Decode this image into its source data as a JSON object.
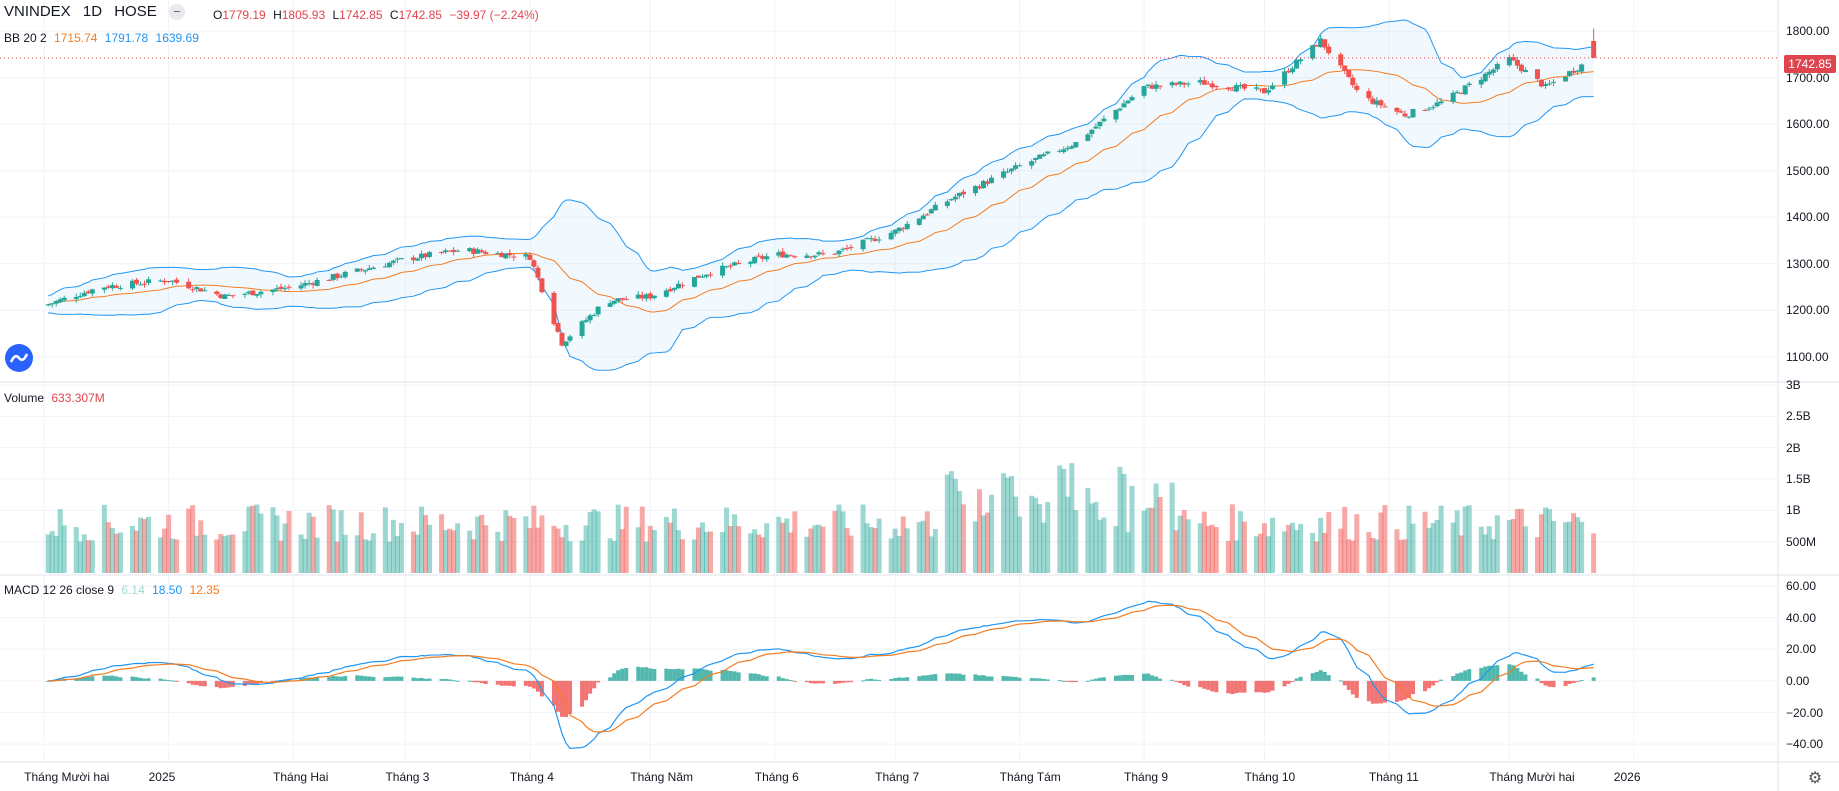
{
  "header": {
    "symbol": "VNINDEX",
    "interval": "1D",
    "exchange": "HOSE",
    "collapse_icon": "minus-icon",
    "open_label": "O",
    "open": "1779.19",
    "high_label": "H",
    "high": "1805.93",
    "low_label": "L",
    "low": "1742.85",
    "close_label": "C",
    "close": "1742.85",
    "change": "−39.97 (−2.24%)"
  },
  "bb_legend": {
    "name": "BB 20 2",
    "middle": "1715.74",
    "upper": "1791.78",
    "lower": "1639.69"
  },
  "volume_legend": {
    "name": "Volume",
    "value": "633.307M"
  },
  "macd_legend": {
    "name": "MACD 12 26 close 9",
    "hist": "6.14",
    "macd": "18.50",
    "signal": "12.35"
  },
  "last_price_tag": "1742.85",
  "price_axis": [
    "1800.00",
    "1700.00",
    "1600.00",
    "1500.00",
    "1400.00",
    "1300.00",
    "1200.00",
    "1100.00"
  ],
  "volume_axis": [
    "3B",
    "2.5B",
    "2B",
    "1.5B",
    "1B",
    "500M"
  ],
  "macd_axis": [
    "60.00",
    "40.00",
    "20.00",
    "0.00",
    "−20.00",
    "−40.00"
  ],
  "time_axis": [
    "Tháng Mười hai",
    "2025",
    "Tháng Hai",
    "Tháng 3",
    "Tháng 4",
    "Tháng Năm",
    "Tháng 6",
    "Tháng 7",
    "Tháng Tám",
    "Tháng 9",
    "Tháng 10",
    "Tháng 11",
    "Tháng Mười hai",
    "2026"
  ],
  "colors": {
    "up": "#26a69a",
    "down": "#ef5350",
    "bb_basis": "#f47c20",
    "bb_band": "#2196f3",
    "macd": "#2196f3",
    "signal": "#f47c20"
  },
  "chart_data": {
    "type": "candlestick",
    "close_anchors": [
      {
        "x": "2024-12-01",
        "y": 1210
      },
      {
        "x": "2024-12-15",
        "y": 1250
      },
      {
        "x": "2025-01-01",
        "y": 1265
      },
      {
        "x": "2025-01-15",
        "y": 1230
      },
      {
        "x": "2025-02-01",
        "y": 1250
      },
      {
        "x": "2025-02-15",
        "y": 1280
      },
      {
        "x": "2025-03-01",
        "y": 1310
      },
      {
        "x": "2025-03-15",
        "y": 1330
      },
      {
        "x": "2025-04-01",
        "y": 1315
      },
      {
        "x": "2025-04-09",
        "y": 1130
      },
      {
        "x": "2025-04-20",
        "y": 1220
      },
      {
        "x": "2025-05-01",
        "y": 1230
      },
      {
        "x": "2025-05-15",
        "y": 1280
      },
      {
        "x": "2025-06-01",
        "y": 1320
      },
      {
        "x": "2025-06-15",
        "y": 1320
      },
      {
        "x": "2025-07-01",
        "y": 1370
      },
      {
        "x": "2025-07-15",
        "y": 1440
      },
      {
        "x": "2025-08-01",
        "y": 1510
      },
      {
        "x": "2025-08-15",
        "y": 1560
      },
      {
        "x": "2025-09-01",
        "y": 1680
      },
      {
        "x": "2025-09-15",
        "y": 1690
      },
      {
        "x": "2025-10-01",
        "y": 1670
      },
      {
        "x": "2025-10-15",
        "y": 1780
      },
      {
        "x": "2025-10-25",
        "y": 1660
      },
      {
        "x": "2025-11-05",
        "y": 1620
      },
      {
        "x": "2025-11-15",
        "y": 1650
      },
      {
        "x": "2025-12-01",
        "y": 1740
      },
      {
        "x": "2025-12-10",
        "y": 1680
      },
      {
        "x": "2025-12-22",
        "y": 1743
      }
    ],
    "last_bar": {
      "date": "2025-12-22",
      "open": 1779.19,
      "high": 1805.93,
      "low": 1742.85,
      "close": 1742.85
    },
    "bollinger": {
      "period": 20,
      "stddev": 2,
      "basis": 1715.74,
      "upper": 1791.78,
      "lower": 1639.69
    },
    "volume_last": 633307000,
    "macd": {
      "fast": 12,
      "slow": 26,
      "signal": 9,
      "histogram": 6.14,
      "macd": 18.5,
      "signal_value": 12.35
    },
    "ylim_price": [
      1050,
      1850
    ],
    "ylim_volume": [
      0,
      3000000000
    ],
    "ylim_macd": [
      -50,
      65
    ],
    "xlim": [
      "2024-11-20",
      "2026-01-15"
    ]
  }
}
